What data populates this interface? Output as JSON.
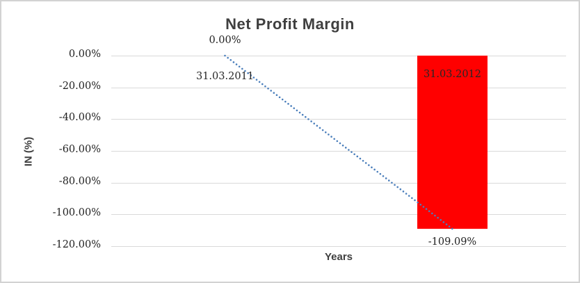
{
  "chart_data": {
    "type": "bar",
    "title": "Net Profit Margin",
    "xlabel": "Years",
    "ylabel": "IN (%)",
    "categories": [
      "31.03.2011",
      "31.03.2012"
    ],
    "series": [
      {
        "name": "Net Profit Margin",
        "values": [
          0,
          -109.09
        ],
        "color": "#ff0000"
      }
    ],
    "data_labels": [
      "0.00%",
      "-109.09%"
    ],
    "trendline": {
      "type": "linear",
      "style": "dotted",
      "color": "#4a7ebb",
      "point_values": [
        0,
        -109.09
      ]
    },
    "y_axis": {
      "tick_labels": [
        "0.00%",
        "-20.00%",
        "-40.00%",
        "-60.00%",
        "-80.00%",
        "-100.00%",
        "-120.00%"
      ],
      "tick_values": [
        0,
        -20,
        -40,
        -60,
        -80,
        -100,
        -120
      ],
      "min": -120,
      "max": 0
    },
    "grid": true,
    "legend": "none",
    "colors": {
      "bar": "#ff0000",
      "trendline": "#4a7ebb",
      "gridline": "#d9d9d9",
      "title_text": "#3f3f3f",
      "tick_text": "#1f1f1f",
      "frame_border": "#d2d2d2",
      "background": "#ffffff"
    }
  }
}
